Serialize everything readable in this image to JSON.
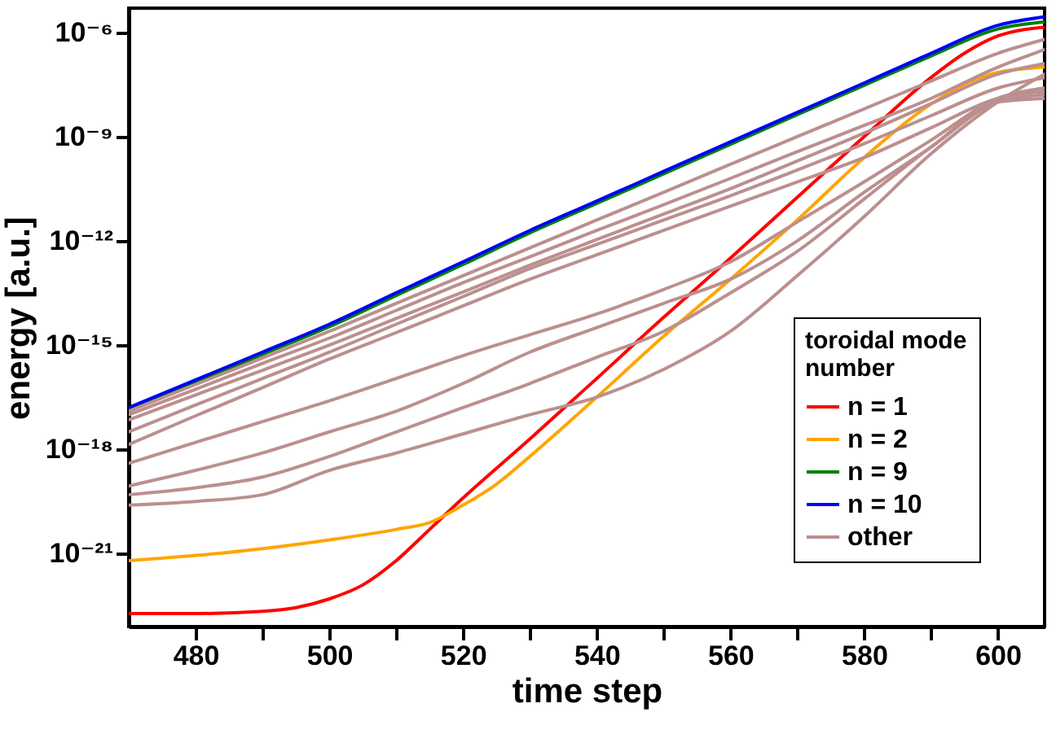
{
  "chart_data": {
    "type": "line",
    "xlabel": "time step",
    "ylabel": "energy [a.u.]",
    "legend_title": "toroidal mode number",
    "legend": "bottom right",
    "log": "y",
    "grid": false,
    "marker": "none",
    "line_style": "solid",
    "xlim": [
      470,
      607
    ],
    "xticks": [
      480,
      {
        "value": 490,
        "label": null
      },
      500,
      {
        "value": 510,
        "label": null
      },
      520,
      {
        "value": 530,
        "label": null
      },
      540,
      {
        "value": 550,
        "label": null
      },
      560,
      {
        "value": 570,
        "label": null
      },
      580,
      {
        "value": 590,
        "label": null
      },
      600
    ],
    "ylim": [
      8e-24,
      5e-06
    ],
    "yticks": [
      {
        "value": 1e-21,
        "label": "10⁻²¹"
      },
      {
        "value": 1e-18,
        "label": "10⁻¹⁸"
      },
      {
        "value": 1e-15,
        "label": "10⁻¹⁵"
      },
      {
        "value": 1e-12,
        "label": "10⁻¹²"
      },
      {
        "value": 1e-09,
        "label": "10⁻⁹"
      },
      {
        "value": 1e-06,
        "label": "10⁻⁶"
      }
    ],
    "x": [
      470,
      480,
      490,
      500,
      510,
      520,
      530,
      540,
      550,
      560,
      570,
      580,
      590,
      600,
      607
    ],
    "series": [
      {
        "name": "n = 1",
        "color": "#ff0000",
        "x": [
          470,
          480,
          490,
          495,
          500,
          505,
          510,
          515,
          520,
          530,
          540,
          550,
          560,
          570,
          580,
          590,
          595,
          600,
          607
        ],
        "values": [
          1.9e-23,
          1.9e-23,
          2.2e-23,
          2.8e-23,
          5e-23,
          1.26e-22,
          6.3e-22,
          5e-21,
          4e-20,
          2e-18,
          1.1e-16,
          6.3e-15,
          3.2e-13,
          1.8e-11,
          1e-09,
          5e-08,
          2.5e-07,
          7.9e-07,
          1.4e-06
        ]
      },
      {
        "name": "n = 2",
        "color": "#ffa500",
        "x": [
          470,
          480,
          490,
          500,
          510,
          515,
          520,
          525,
          530,
          540,
          550,
          560,
          570,
          580,
          590,
          595,
          600,
          607
        ],
        "values": [
          6.3e-22,
          8.9e-22,
          1.4e-21,
          2.5e-21,
          5e-21,
          7.9e-21,
          2.5e-20,
          1e-19,
          6.3e-19,
          3.2e-17,
          1.8e-15,
          7.9e-14,
          4e-12,
          2.5e-10,
          8.7e-09,
          3.2e-08,
          7.1e-08,
          1e-07
        ]
      },
      {
        "name": "n = 9",
        "color": "#008000",
        "values": [
          1.4e-17,
          8.5e-17,
          5.4e-16,
          3.4e-15,
          2.7e-14,
          2.1e-13,
          1.7e-12,
          1.2e-11,
          8.5e-11,
          6e-10,
          4.3e-09,
          3e-08,
          2.1e-07,
          1.26e-06,
          2e-06
        ]
      },
      {
        "name": "n = 10",
        "color": "#0000ff",
        "values": [
          1.6e-17,
          1e-16,
          6.3e-16,
          4e-15,
          3.2e-14,
          2.5e-13,
          2e-12,
          1.4e-11,
          1e-10,
          7.1e-10,
          5e-09,
          3.5e-08,
          2.5e-07,
          1.6e-06,
          2.8e-06
        ]
      },
      {
        "name": "other",
        "color": "#bc8f8f",
        "values": [
          1.26e-17,
          7.4e-17,
          4.3e-16,
          2.5e-15,
          1.6e-14,
          1e-13,
          6.3e-13,
          4e-12,
          2.5e-11,
          1.6e-10,
          1e-09,
          6.3e-09,
          4e-08,
          2.5e-07,
          6.3e-07
        ]
      },
      {
        "color": "#bc8f8f",
        "values": [
          1e-17,
          5.4e-17,
          3e-16,
          1.6e-15,
          1e-14,
          6.3e-14,
          3.5e-13,
          2e-12,
          1.1e-11,
          6.3e-11,
          3.7e-10,
          2.1e-09,
          1.26e-08,
          1e-07,
          3.2e-07
        ]
      },
      {
        "color": "#bc8f8f",
        "values": [
          7.1e-18,
          3.7e-17,
          1.9e-16,
          1e-15,
          5.9e-15,
          3.4e-14,
          2e-13,
          1.1e-12,
          5.9e-12,
          3.2e-11,
          2e-10,
          1.26e-09,
          8.9e-09,
          6.3e-08,
          1.26e-07
        ]
      },
      {
        "color": "#bc8f8f",
        "values": [
          3.2e-18,
          1.9e-17,
          1.1e-16,
          6.3e-16,
          4e-15,
          2.5e-14,
          1.6e-13,
          7.9e-13,
          4e-12,
          2e-11,
          1.1e-10,
          6.3e-10,
          4e-09,
          2.5e-08,
          5e-08
        ]
      },
      {
        "color": "#bc8f8f",
        "values": [
          1.4e-18,
          9.3e-18,
          6e-17,
          4e-16,
          2.3e-15,
          1.35e-14,
          7.9e-14,
          4e-13,
          2e-12,
          1e-11,
          5e-11,
          2.5e-10,
          1.8e-09,
          1.26e-08,
          2e-08
        ]
      },
      {
        "color": "#bc8f8f",
        "values": [
          4e-19,
          1.6e-18,
          6.3e-18,
          2.5e-17,
          1.1e-16,
          5e-16,
          2e-15,
          7.9e-15,
          4e-14,
          2.5e-13,
          3.5e-12,
          5e-11,
          7.9e-10,
          1.26e-08,
          2.5e-08
        ]
      },
      {
        "color": "#bc8f8f",
        "values": [
          8.9e-20,
          2.5e-19,
          7.9e-19,
          3.2e-18,
          1.26e-17,
          7.9e-17,
          6.3e-16,
          3.2e-15,
          1.6e-14,
          7.9e-14,
          1e-12,
          2.5e-11,
          5e-10,
          1e-08,
          1.6e-08
        ]
      },
      {
        "color": "#bc8f8f",
        "values": [
          5e-20,
          7.9e-20,
          1.6e-19,
          6.3e-19,
          3.2e-18,
          1.6e-17,
          7.9e-17,
          4.5e-16,
          2.5e-15,
          3.2e-14,
          5e-13,
          1.6e-11,
          5e-10,
          1e-08,
          1.26e-08
        ]
      },
      {
        "color": "#bc8f8f",
        "values": [
          2.5e-20,
          3.2e-20,
          5e-20,
          2.5e-19,
          7.9e-19,
          2.8e-18,
          1e-17,
          3.2e-17,
          2e-16,
          2.5e-15,
          1e-13,
          5e-12,
          3.2e-10,
          1e-08,
          6.3e-08
        ]
      }
    ]
  }
}
